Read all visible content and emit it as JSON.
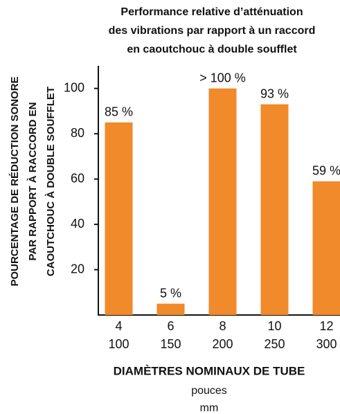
{
  "chart_data": {
    "type": "bar",
    "title": [
      "Performance relative d’atténuation",
      "des vibrations par rapport à un raccord",
      "en caoutchouc à double soufflet"
    ],
    "ylabel": [
      "POURCENTAGE DE RÉDUCTION SONORE",
      "PAR RAPPORT À RACCORD EN",
      "CAOUTCHOUC À DOUBLE SOUFFLET"
    ],
    "xlabel": "DIAMÈTRES NOMINAUX DE TUBE",
    "xunits": [
      "pouces",
      "mm"
    ],
    "categories": [
      [
        "4",
        "100"
      ],
      [
        "6",
        "150"
      ],
      [
        "8",
        "200"
      ],
      [
        "10",
        "250"
      ],
      [
        "12",
        "300"
      ]
    ],
    "values": [
      85,
      5,
      100,
      93,
      59
    ],
    "value_labels": [
      "85 %",
      "5 %",
      "> 100 %",
      "93 %",
      "59 %"
    ],
    "color": "#f08a2a",
    "ylim": [
      0,
      110
    ],
    "yticks": [
      20,
      40,
      60,
      80,
      100
    ],
    "grid": false
  }
}
